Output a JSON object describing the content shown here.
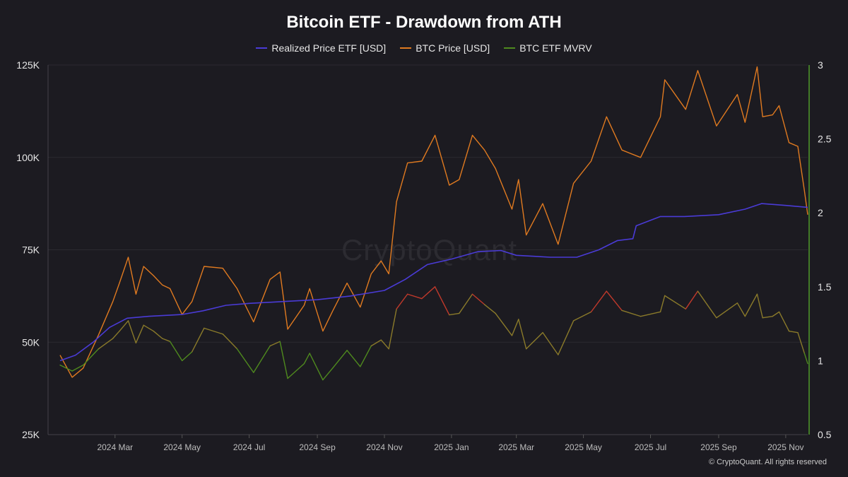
{
  "colors": {
    "background": "#1c1b21",
    "grid": "#2b2a31",
    "realized": "#4a3bd6",
    "btc": "#e07a20",
    "mvrv_low": "#4f8a1e",
    "mvrv_mid": "#8a7a2a",
    "mvrv_high": "#c0392b",
    "right_axis": "#4f9a2a"
  },
  "watermark": "CryptoQuant",
  "copyright": "© CryptoQuant. All rights reserved",
  "chart_data": {
    "type": "line",
    "title": "Bitcoin ETF - Drawdown from ATH",
    "x_range": [
      "2024-01-11",
      "2025-11-21"
    ],
    "x_tick_labels": [
      {
        "date": "2024-03-01",
        "label": "2024 Mar"
      },
      {
        "date": "2024-05-01",
        "label": "2024 May"
      },
      {
        "date": "2024-07-01",
        "label": "2024 Jul"
      },
      {
        "date": "2024-09-01",
        "label": "2024 Sep"
      },
      {
        "date": "2024-11-01",
        "label": "2024 Nov"
      },
      {
        "date": "2025-01-01",
        "label": "2025 Jan"
      },
      {
        "date": "2025-03-01",
        "label": "2025 Mar"
      },
      {
        "date": "2025-05-01",
        "label": "2025 May"
      },
      {
        "date": "2025-07-01",
        "label": "2025 Jul"
      },
      {
        "date": "2025-09-01",
        "label": "2025 Sep"
      },
      {
        "date": "2025-11-01",
        "label": "2025 Nov"
      }
    ],
    "y_left": {
      "ylim": [
        25000,
        125000
      ],
      "ticks": [
        {
          "value": 25000,
          "label": "25K"
        },
        {
          "value": 50000,
          "label": "50K"
        },
        {
          "value": 75000,
          "label": "75K"
        },
        {
          "value": 100000,
          "label": "100K"
        },
        {
          "value": 125000,
          "label": "125K"
        }
      ]
    },
    "y_right": {
      "ylim": [
        0.5,
        3
      ],
      "ticks": [
        {
          "value": 0.5,
          "label": "0.5"
        },
        {
          "value": 1,
          "label": "1"
        },
        {
          "value": 1.5,
          "label": "1.5"
        },
        {
          "value": 2,
          "label": "2"
        },
        {
          "value": 2.5,
          "label": "2.5"
        },
        {
          "value": 3,
          "label": "3"
        }
      ]
    },
    "grid": true,
    "legend_position": "top-center",
    "series": [
      {
        "name": "Realized Price ETF [USD]",
        "axis": "left",
        "points": [
          [
            "2024-01-11",
            45000
          ],
          [
            "2024-01-25",
            46500
          ],
          [
            "2024-02-10",
            50000
          ],
          [
            "2024-02-25",
            54000
          ],
          [
            "2024-03-12",
            56500
          ],
          [
            "2024-04-01",
            57000
          ],
          [
            "2024-05-01",
            57500
          ],
          [
            "2024-05-20",
            58500
          ],
          [
            "2024-06-10",
            60000
          ],
          [
            "2024-07-01",
            60500
          ],
          [
            "2024-08-01",
            61000
          ],
          [
            "2024-09-01",
            61500
          ],
          [
            "2024-10-01",
            62500
          ],
          [
            "2024-11-01",
            64000
          ],
          [
            "2024-11-20",
            67000
          ],
          [
            "2024-12-10",
            71000
          ],
          [
            "2025-01-01",
            72500
          ],
          [
            "2025-01-25",
            74500
          ],
          [
            "2025-02-15",
            74800
          ],
          [
            "2025-03-01",
            73500
          ],
          [
            "2025-04-01",
            73000
          ],
          [
            "2025-04-25",
            73000
          ],
          [
            "2025-05-15",
            75000
          ],
          [
            "2025-06-01",
            77500
          ],
          [
            "2025-06-15",
            78000
          ],
          [
            "2025-06-18",
            81500
          ],
          [
            "2025-07-10",
            84000
          ],
          [
            "2025-08-01",
            84000
          ],
          [
            "2025-09-01",
            84500
          ],
          [
            "2025-09-25",
            86000
          ],
          [
            "2025-10-10",
            87500
          ],
          [
            "2025-11-01",
            87000
          ],
          [
            "2025-11-21",
            86500
          ]
        ]
      },
      {
        "name": "BTC Price [USD]",
        "axis": "left",
        "points": [
          [
            "2024-01-11",
            46500
          ],
          [
            "2024-01-22",
            40500
          ],
          [
            "2024-02-01",
            43000
          ],
          [
            "2024-02-15",
            52000
          ],
          [
            "2024-02-28",
            61000
          ],
          [
            "2024-03-05",
            66000
          ],
          [
            "2024-03-13",
            73000
          ],
          [
            "2024-03-20",
            63000
          ],
          [
            "2024-03-27",
            70500
          ],
          [
            "2024-04-05",
            68000
          ],
          [
            "2024-04-13",
            65500
          ],
          [
            "2024-04-20",
            64500
          ],
          [
            "2024-05-01",
            57500
          ],
          [
            "2024-05-10",
            61000
          ],
          [
            "2024-05-21",
            70500
          ],
          [
            "2024-06-07",
            70000
          ],
          [
            "2024-06-20",
            64500
          ],
          [
            "2024-07-05",
            55500
          ],
          [
            "2024-07-20",
            67000
          ],
          [
            "2024-07-29",
            69000
          ],
          [
            "2024-08-05",
            53500
          ],
          [
            "2024-08-20",
            60000
          ],
          [
            "2024-08-25",
            64500
          ],
          [
            "2024-09-06",
            53000
          ],
          [
            "2024-09-15",
            58500
          ],
          [
            "2024-09-28",
            66000
          ],
          [
            "2024-10-10",
            59500
          ],
          [
            "2024-10-20",
            68500
          ],
          [
            "2024-10-29",
            72000
          ],
          [
            "2024-11-05",
            68500
          ],
          [
            "2024-11-12",
            88000
          ],
          [
            "2024-11-22",
            98500
          ],
          [
            "2024-12-05",
            99000
          ],
          [
            "2024-12-17",
            106000
          ],
          [
            "2024-12-30",
            92500
          ],
          [
            "2025-01-08",
            94000
          ],
          [
            "2025-01-20",
            106000
          ],
          [
            "2025-01-31",
            102000
          ],
          [
            "2025-02-10",
            97000
          ],
          [
            "2025-02-25",
            86000
          ],
          [
            "2025-03-03",
            94000
          ],
          [
            "2025-03-10",
            79000
          ],
          [
            "2025-03-25",
            87500
          ],
          [
            "2025-04-08",
            76500
          ],
          [
            "2025-04-22",
            93000
          ],
          [
            "2025-05-08",
            99000
          ],
          [
            "2025-05-22",
            111000
          ],
          [
            "2025-06-05",
            102000
          ],
          [
            "2025-06-22",
            100000
          ],
          [
            "2025-07-10",
            111000
          ],
          [
            "2025-07-14",
            121000
          ],
          [
            "2025-08-02",
            113000
          ],
          [
            "2025-08-13",
            123500
          ],
          [
            "2025-08-30",
            108500
          ],
          [
            "2025-09-18",
            117000
          ],
          [
            "2025-09-25",
            109500
          ],
          [
            "2025-10-06",
            124500
          ],
          [
            "2025-10-11",
            111000
          ],
          [
            "2025-10-20",
            111500
          ],
          [
            "2025-10-26",
            114000
          ],
          [
            "2025-11-04",
            104000
          ],
          [
            "2025-11-12",
            103000
          ],
          [
            "2025-11-18",
            91000
          ],
          [
            "2025-11-21",
            84500
          ]
        ]
      },
      {
        "name": "BTC ETF MVRV",
        "axis": "right",
        "points": [
          [
            "2024-01-11",
            0.97
          ],
          [
            "2024-01-22",
            0.93
          ],
          [
            "2024-02-01",
            0.97
          ],
          [
            "2024-02-15",
            1.08
          ],
          [
            "2024-02-28",
            1.15
          ],
          [
            "2024-03-05",
            1.2
          ],
          [
            "2024-03-13",
            1.27
          ],
          [
            "2024-03-20",
            1.12
          ],
          [
            "2024-03-27",
            1.24
          ],
          [
            "2024-04-05",
            1.2
          ],
          [
            "2024-04-13",
            1.15
          ],
          [
            "2024-04-20",
            1.13
          ],
          [
            "2024-05-01",
            1.0
          ],
          [
            "2024-05-10",
            1.06
          ],
          [
            "2024-05-21",
            1.22
          ],
          [
            "2024-06-07",
            1.18
          ],
          [
            "2024-06-20",
            1.08
          ],
          [
            "2024-07-05",
            0.92
          ],
          [
            "2024-07-20",
            1.1
          ],
          [
            "2024-07-29",
            1.13
          ],
          [
            "2024-08-05",
            0.88
          ],
          [
            "2024-08-20",
            0.98
          ],
          [
            "2024-08-25",
            1.05
          ],
          [
            "2024-09-06",
            0.87
          ],
          [
            "2024-09-15",
            0.95
          ],
          [
            "2024-09-28",
            1.07
          ],
          [
            "2024-10-10",
            0.96
          ],
          [
            "2024-10-20",
            1.1
          ],
          [
            "2024-10-29",
            1.14
          ],
          [
            "2024-11-05",
            1.08
          ],
          [
            "2024-11-12",
            1.35
          ],
          [
            "2024-11-22",
            1.45
          ],
          [
            "2024-12-05",
            1.42
          ],
          [
            "2024-12-17",
            1.5
          ],
          [
            "2024-12-30",
            1.31
          ],
          [
            "2025-01-08",
            1.32
          ],
          [
            "2025-01-20",
            1.45
          ],
          [
            "2025-01-31",
            1.38
          ],
          [
            "2025-02-10",
            1.32
          ],
          [
            "2025-02-25",
            1.17
          ],
          [
            "2025-03-03",
            1.28
          ],
          [
            "2025-03-10",
            1.08
          ],
          [
            "2025-03-25",
            1.19
          ],
          [
            "2025-04-08",
            1.04
          ],
          [
            "2025-04-22",
            1.27
          ],
          [
            "2025-05-08",
            1.33
          ],
          [
            "2025-05-22",
            1.47
          ],
          [
            "2025-06-05",
            1.34
          ],
          [
            "2025-06-22",
            1.3
          ],
          [
            "2025-07-10",
            1.33
          ],
          [
            "2025-07-14",
            1.44
          ],
          [
            "2025-08-02",
            1.35
          ],
          [
            "2025-08-13",
            1.47
          ],
          [
            "2025-08-30",
            1.29
          ],
          [
            "2025-09-18",
            1.39
          ],
          [
            "2025-09-25",
            1.3
          ],
          [
            "2025-10-06",
            1.45
          ],
          [
            "2025-10-11",
            1.29
          ],
          [
            "2025-10-20",
            1.3
          ],
          [
            "2025-10-26",
            1.33
          ],
          [
            "2025-11-04",
            1.2
          ],
          [
            "2025-11-12",
            1.19
          ],
          [
            "2025-11-18",
            1.05
          ],
          [
            "2025-11-21",
            0.98
          ]
        ]
      }
    ]
  }
}
